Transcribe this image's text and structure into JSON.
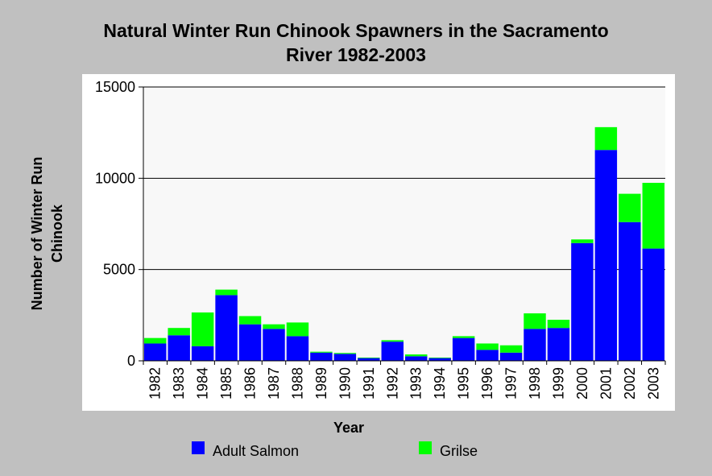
{
  "chart_data": {
    "type": "bar",
    "stacked": true,
    "title_line1": "Natural Winter Run Chinook Spawners in the Sacramento",
    "title_line2": "River 1982-2003",
    "xlabel": "Year",
    "ylabel_line1": "Number of Winter Run",
    "ylabel_line2": "Chinook",
    "ylim": [
      0,
      15000
    ],
    "yticks": [
      "0",
      "5000",
      "10000",
      "15000"
    ],
    "grid": true,
    "legend_position": "bottom",
    "categories": [
      "1982",
      "1983",
      "1984",
      "1985",
      "1986",
      "1987",
      "1988",
      "1989",
      "1990",
      "1991",
      "1992",
      "1993",
      "1994",
      "1995",
      "1996",
      "1997",
      "1998",
      "1999",
      "2000",
      "2001",
      "2002",
      "2003"
    ],
    "series": [
      {
        "name": "Adult Salmon",
        "color": "#0000ff",
        "values": [
          950,
          1400,
          800,
          3600,
          2000,
          1750,
          1350,
          450,
          380,
          150,
          1050,
          250,
          150,
          1250,
          600,
          450,
          1750,
          1800,
          6450,
          11550,
          7600,
          6150
        ]
      },
      {
        "name": "Grilse",
        "color": "#00ff00",
        "values": [
          300,
          400,
          1850,
          300,
          450,
          250,
          750,
          50,
          50,
          30,
          80,
          100,
          30,
          100,
          350,
          400,
          850,
          450,
          200,
          1250,
          1550,
          3600
        ]
      }
    ]
  }
}
